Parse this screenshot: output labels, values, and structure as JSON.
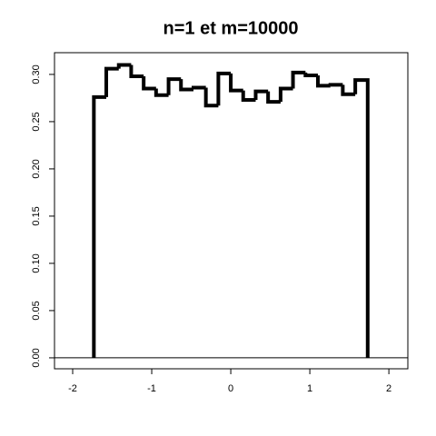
{
  "chart_data": {
    "type": "histogram",
    "title": "n=1 et m=10000",
    "bins": [
      -1.732,
      -1.575,
      -1.417,
      -1.26,
      -1.102,
      -0.945,
      -0.787,
      -0.63,
      -0.472,
      -0.315,
      -0.157,
      0,
      0.157,
      0.315,
      0.472,
      0.63,
      0.787,
      0.945,
      1.102,
      1.26,
      1.417,
      1.575,
      1.732
    ],
    "values": [
      0.276,
      0.306,
      0.31,
      0.298,
      0.285,
      0.278,
      0.295,
      0.284,
      0.286,
      0.267,
      0.301,
      0.283,
      0.273,
      0.282,
      0.271,
      0.285,
      0.302,
      0.299,
      0.288,
      0.289,
      0.279,
      0.294
    ],
    "color": "#000000",
    "xlim": [
      -2.23,
      2.24
    ],
    "xticks": [
      -2,
      -1,
      0,
      1,
      2
    ],
    "ylim": [
      -0.0116,
      0.323
    ],
    "yticks": [
      {
        "value": 0,
        "label": "0.00"
      },
      {
        "value": 0.05,
        "label": "0.05"
      },
      {
        "value": 0.1,
        "label": "0.10"
      },
      {
        "value": 0.15,
        "label": "0.15"
      },
      {
        "value": 0.2,
        "label": "0.20"
      },
      {
        "value": 0.25,
        "label": "0.25"
      },
      {
        "value": 0.3,
        "label": "0.30"
      }
    ]
  }
}
